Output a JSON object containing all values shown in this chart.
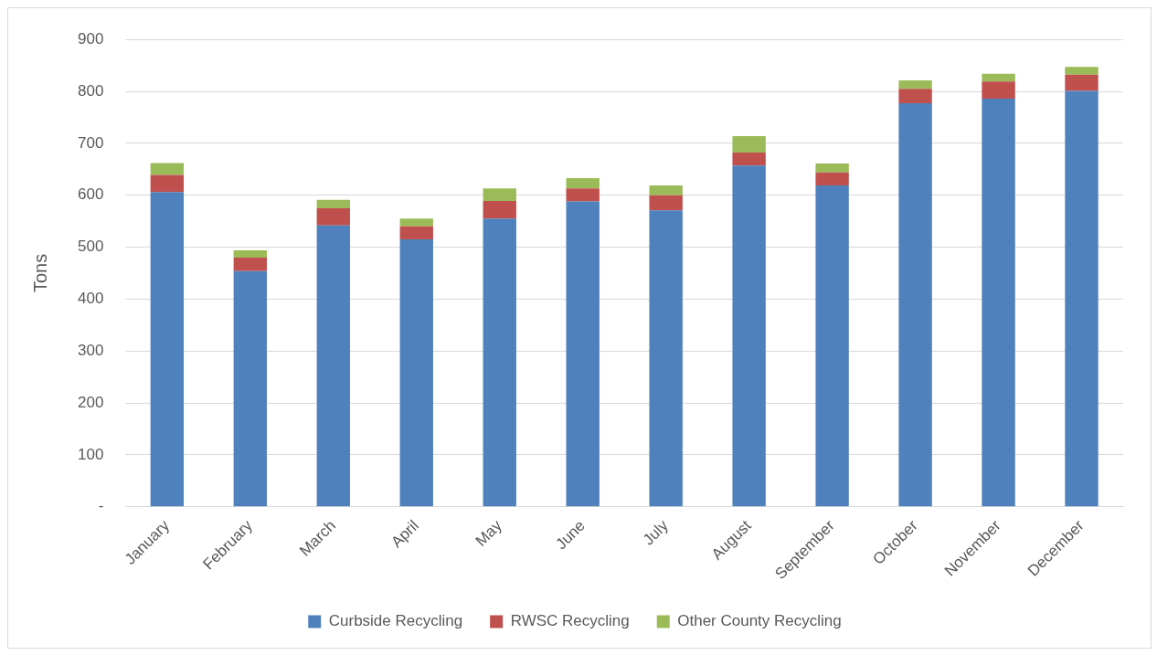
{
  "chart_data": {
    "type": "bar",
    "ylabel": "Tons",
    "stacked": true,
    "categories": [
      "January",
      "February",
      "March",
      "April",
      "May",
      "June",
      "July",
      "August",
      "September",
      "October",
      "November",
      "December"
    ],
    "series": [
      {
        "name": "Curbside Recycling",
        "color": "#4f81bd",
        "values": [
          606,
          454,
          542,
          515,
          555,
          588,
          571,
          657,
          619,
          777,
          786,
          801
        ]
      },
      {
        "name": "RWSC Recycling",
        "color": "#c0504d",
        "values": [
          33,
          26,
          33,
          25,
          34,
          25,
          29,
          25,
          25,
          28,
          33,
          31
        ]
      },
      {
        "name": "Other County Recycling",
        "color": "#9bbb59",
        "values": [
          23,
          14,
          16,
          15,
          24,
          20,
          19,
          32,
          17,
          16,
          15,
          15
        ]
      }
    ],
    "ylim": [
      0,
      900
    ],
    "yticks": [
      {
        "value": 0,
        "label": "-"
      },
      100,
      200,
      300,
      400,
      500,
      600,
      700,
      800,
      900
    ],
    "grid": "y",
    "legend": "bottom"
  }
}
